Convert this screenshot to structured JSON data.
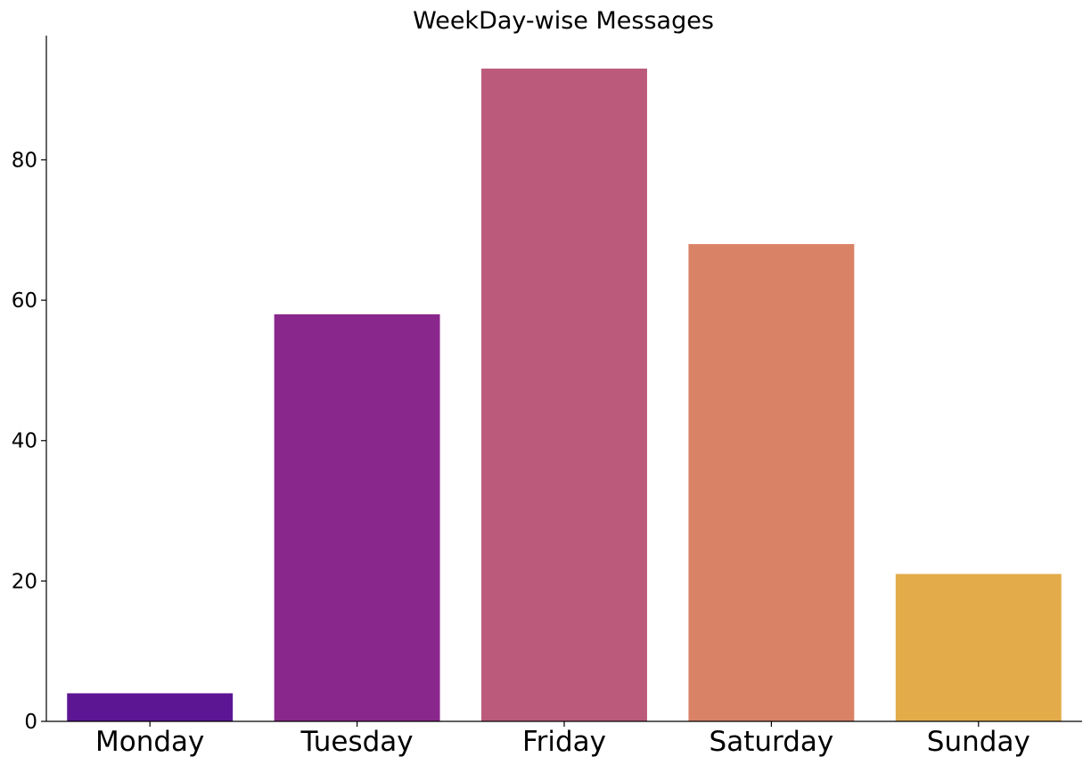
{
  "chart_data": {
    "type": "bar",
    "title": "WeekDay-wise Messages",
    "xlabel": "",
    "ylabel": "",
    "categories": [
      "Monday",
      "Tuesday",
      "Friday",
      "Saturday",
      "Sunday"
    ],
    "values": [
      4,
      58,
      93,
      68,
      21
    ],
    "colors": [
      "#5c1694",
      "#8a278c",
      "#bb5a7b",
      "#d98266",
      "#e3ab4a"
    ],
    "ylim": [
      0,
      97.7
    ],
    "yticks": [
      0,
      20,
      40,
      60,
      80
    ],
    "grid": false,
    "legend": "none"
  }
}
